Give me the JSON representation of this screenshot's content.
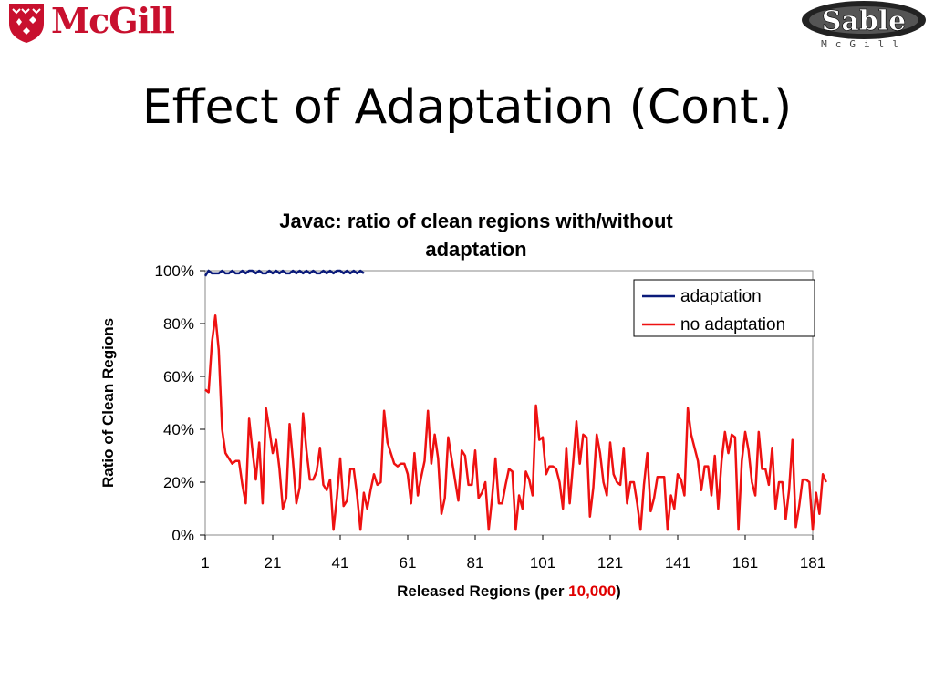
{
  "logos": {
    "mcgill_text": "McGill",
    "sable_text": "Sable",
    "sable_subtext": "McGill",
    "mcgill_color": "#c8102e"
  },
  "slide": {
    "title": "Effect of Adaptation (Cont.)"
  },
  "chart_data": {
    "type": "line",
    "title_lines": [
      "Javac: ratio of clean regions with/without",
      "adaptation"
    ],
    "xlabel_prefix": "Released Regions (per ",
    "xlabel_highlight": "10,000",
    "xlabel_suffix": ")",
    "xlabel_highlight_color": "#e00000",
    "ylabel": "Ratio of Clean Regions",
    "xlim": [
      1,
      181
    ],
    "ylim": [
      0,
      100
    ],
    "x_ticks": [
      1,
      21,
      41,
      61,
      81,
      101,
      121,
      141,
      161,
      181
    ],
    "y_ticks": [
      "0%",
      "20%",
      "40%",
      "60%",
      "80%",
      "100%"
    ],
    "y_tick_values": [
      0,
      20,
      40,
      60,
      80,
      100
    ],
    "legend_position": "top-right",
    "grid": false,
    "series": [
      {
        "name": "adaptation",
        "color": "#0a1a7a",
        "x_start": 1,
        "values": [
          98,
          100,
          99,
          99,
          99,
          100,
          99,
          99,
          100,
          99,
          99,
          100,
          99,
          100,
          100,
          99,
          100,
          99,
          99,
          100,
          99,
          100,
          99,
          100,
          99,
          99,
          100,
          99,
          100,
          99,
          100,
          99,
          100,
          99,
          99,
          100,
          99,
          100,
          99,
          100,
          100,
          99,
          100,
          99,
          100,
          99,
          100,
          99
        ]
      },
      {
        "name": "no adaptation",
        "color": "#ee1111",
        "x_start": 1,
        "values": [
          55,
          54,
          73,
          83,
          70,
          40,
          31,
          29,
          27,
          28,
          28,
          19,
          12,
          44,
          32,
          21,
          35,
          12,
          48,
          40,
          31,
          36,
          25,
          10,
          14,
          42,
          28,
          12,
          18,
          46,
          32,
          21,
          21,
          24,
          33,
          19,
          17,
          21,
          2,
          14,
          29,
          11,
          13,
          25,
          25,
          15,
          2,
          16,
          10,
          17,
          23,
          19,
          20,
          47,
          35,
          31,
          27,
          26,
          27,
          27,
          23,
          12,
          31,
          15,
          22,
          28,
          47,
          27,
          38,
          29,
          8,
          14,
          37,
          29,
          21,
          13,
          32,
          30,
          19,
          19,
          32,
          14,
          16,
          20,
          2,
          14,
          29,
          12,
          12,
          19,
          25,
          24,
          2,
          15,
          10,
          24,
          21,
          15,
          49,
          36,
          37,
          23,
          26,
          26,
          25,
          20,
          10,
          33,
          12,
          27,
          43,
          27,
          38,
          37,
          7,
          18,
          38,
          31,
          20,
          15,
          35,
          23,
          20,
          19,
          33,
          12,
          20,
          20,
          12,
          2,
          19,
          31,
          9,
          14,
          22,
          22,
          22,
          2,
          15,
          10,
          23,
          21,
          15,
          48,
          38,
          33,
          28,
          17,
          26,
          26,
          15,
          30,
          10,
          28,
          39,
          31,
          38,
          37,
          2,
          28,
          39,
          32,
          20,
          15,
          39,
          25,
          25,
          19,
          33,
          10,
          20,
          20,
          6,
          17,
          36,
          3,
          11,
          21,
          21,
          20,
          2,
          16,
          8,
          23,
          20
        ]
      }
    ]
  }
}
